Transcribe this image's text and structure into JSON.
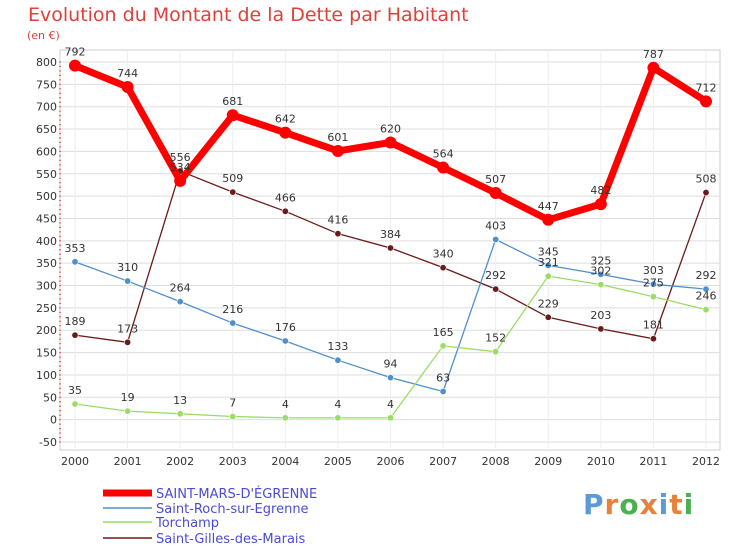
{
  "chart_data": {
    "type": "line",
    "title": "Evolution du Montant de la Dette par Habitant",
    "unit_label": "(en €)",
    "x": [
      "2000",
      "2001",
      "2002",
      "2003",
      "2004",
      "2005",
      "2006",
      "2007",
      "2008",
      "2009",
      "2010",
      "2011",
      "2012"
    ],
    "ylim": [
      -50,
      800
    ],
    "yticks": [
      -50,
      0,
      50,
      100,
      150,
      200,
      250,
      300,
      350,
      400,
      450,
      500,
      550,
      600,
      650,
      700,
      750,
      800
    ],
    "grid": true,
    "legend_position": "bottom-left",
    "series": [
      {
        "name": "SAINT-MARS-D'ÉGRENNE",
        "color": "#ff0000",
        "values": [
          792,
          744,
          534,
          681,
          642,
          601,
          620,
          564,
          507,
          447,
          482,
          787,
          712
        ],
        "labels": [
          "792",
          "744",
          "534",
          "681",
          "642",
          "601",
          "620",
          "564",
          "507",
          "447",
          "482",
          "787",
          "712"
        ]
      },
      {
        "name": "Saint-Roch-sur-Egrenne",
        "color": "#4f8fcd",
        "values": [
          353,
          310,
          264,
          216,
          176,
          133,
          94,
          63,
          403,
          345,
          325,
          303,
          292
        ],
        "labels": [
          "353",
          "310",
          "264",
          "216",
          "176",
          "133",
          "94",
          "63",
          "403",
          "345",
          "325",
          "303",
          "292"
        ]
      },
      {
        "name": "Torchamp",
        "color": "#99dd66",
        "values": [
          35,
          19,
          13,
          7,
          4,
          4,
          4,
          165,
          152,
          321,
          302,
          275,
          246
        ],
        "labels": [
          "35",
          "19",
          "13",
          "7",
          "4",
          "4",
          "4",
          "165",
          "152",
          "321",
          "302",
          "275",
          "246"
        ]
      },
      {
        "name": "Saint-Gilles-des-Marais",
        "color": "#6b1a1a",
        "values": [
          189,
          173,
          556,
          509,
          466,
          416,
          384,
          340,
          292,
          229,
          203,
          181,
          508
        ],
        "labels": [
          "189",
          "173",
          "556",
          "509",
          "466",
          "416",
          "384",
          "340",
          "292",
          "229",
          "203",
          "181",
          "508"
        ]
      }
    ]
  },
  "brand": {
    "text": "Proxiti",
    "colors": [
      "#5b9bd5",
      "#e8823a",
      "#4caf50",
      "#e8823a",
      "#5b9bd5",
      "#e8823a",
      "#4caf50"
    ]
  }
}
